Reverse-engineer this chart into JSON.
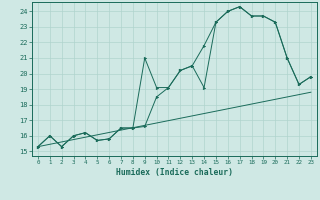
{
  "xlabel": "Humidex (Indice chaleur)",
  "bg_color": "#cfe8e4",
  "grid_color": "#b0d4ce",
  "line_color": "#1a6b5a",
  "xlim": [
    -0.5,
    23.5
  ],
  "ylim": [
    14.7,
    24.6
  ],
  "xticks": [
    0,
    1,
    2,
    3,
    4,
    5,
    6,
    7,
    8,
    9,
    10,
    11,
    12,
    13,
    14,
    15,
    16,
    17,
    18,
    19,
    20,
    21,
    22,
    23
  ],
  "yticks": [
    15,
    16,
    17,
    18,
    19,
    20,
    21,
    22,
    23,
    24
  ],
  "line1_x": [
    0,
    1,
    2,
    3,
    4,
    5,
    6,
    7,
    8,
    9,
    10,
    11,
    12,
    13,
    14,
    15,
    16,
    17,
    18,
    19,
    20,
    21,
    22,
    23
  ],
  "line1_y": [
    15.3,
    16.0,
    15.3,
    16.0,
    16.2,
    15.7,
    15.8,
    16.5,
    16.5,
    21.0,
    19.1,
    19.1,
    20.2,
    20.5,
    19.1,
    23.3,
    24.0,
    24.3,
    23.7,
    23.7,
    23.3,
    21.0,
    19.3,
    19.8
  ],
  "line2_x": [
    0,
    1,
    2,
    3,
    4,
    5,
    6,
    7,
    8,
    9,
    10,
    11,
    12,
    13,
    14,
    15,
    16,
    17,
    18,
    19,
    20,
    21,
    22,
    23
  ],
  "line2_y": [
    15.3,
    16.0,
    15.3,
    16.0,
    16.2,
    15.7,
    15.8,
    16.5,
    16.5,
    16.6,
    18.5,
    19.1,
    20.2,
    20.5,
    21.8,
    23.3,
    24.0,
    24.3,
    23.7,
    23.7,
    23.3,
    21.0,
    19.3,
    19.8
  ],
  "line3_x": [
    0,
    23
  ],
  "line3_y": [
    15.3,
    18.8
  ]
}
